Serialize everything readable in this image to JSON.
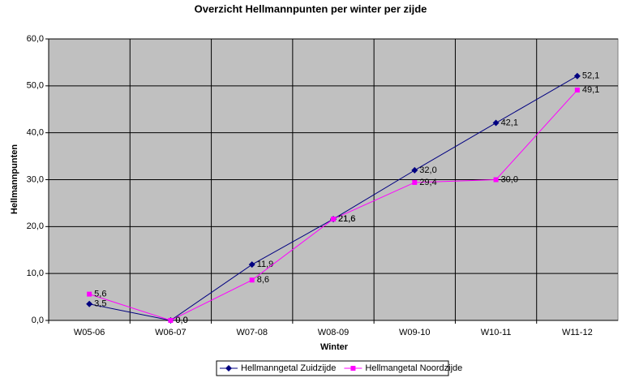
{
  "chart_data": {
    "type": "line",
    "title": "Overzicht Hellmannpunten per winter per zijde",
    "x_label": "Winter",
    "y_label": "Hellmannpunten",
    "categories": [
      "W05-06",
      "W06-07",
      "W07-08",
      "W08-09",
      "W09-10",
      "W10-11",
      "W11-12"
    ],
    "series": [
      {
        "name": "Hellmanngetal Zuidzijde",
        "color": "#000080",
        "marker": "diamond",
        "values": [
          3.5,
          0.0,
          11.9,
          21.6,
          32.0,
          42.1,
          52.1
        ],
        "value_labels": [
          "3,5",
          "0,0",
          "11,9",
          "21,6",
          "32,0",
          "42,1",
          "52,1"
        ]
      },
      {
        "name": "Hellmangetal Noordzijde",
        "color": "#ff00ff",
        "marker": "square",
        "values": [
          5.6,
          0.0,
          8.6,
          21.6,
          29.4,
          30.0,
          49.1
        ],
        "value_labels": [
          "5,6",
          "0,0",
          "8,6",
          "21,6",
          "29,4",
          "30,0",
          "49,1"
        ]
      }
    ],
    "ylim": [
      0,
      60
    ],
    "yticks": [
      {
        "value": 0,
        "label": "0,0"
      },
      {
        "value": 10,
        "label": "10,0"
      },
      {
        "value": 20,
        "label": "20,0"
      },
      {
        "value": 30,
        "label": "30,0"
      },
      {
        "value": 40,
        "label": "40,0"
      },
      {
        "value": 50,
        "label": "50,0"
      },
      {
        "value": 60,
        "label": "60,0"
      }
    ],
    "grid": true,
    "plot_background": "#c0c0c0",
    "legend": "bottom"
  }
}
